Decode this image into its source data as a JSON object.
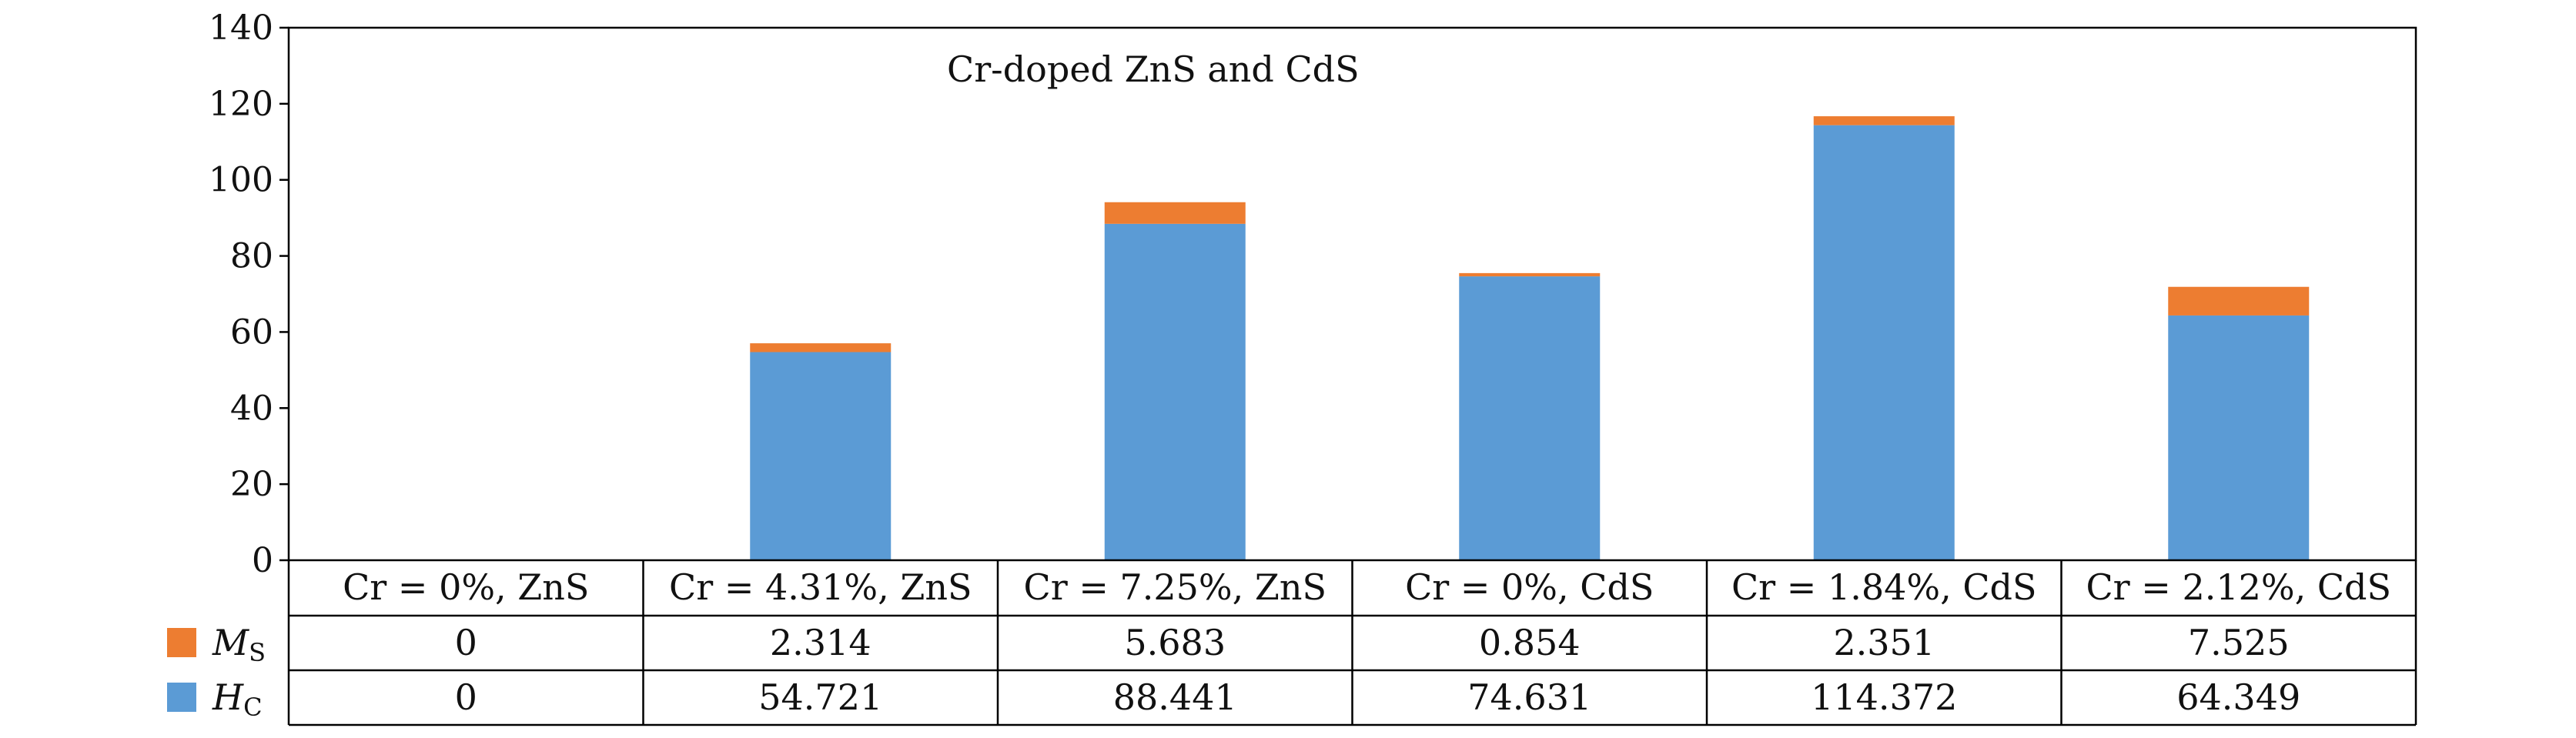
{
  "chart_data": {
    "type": "bar",
    "stacked": true,
    "title": "Cr-doped ZnS and CdS",
    "categories": [
      "Cr = 0%, ZnS",
      "Cr = 4.31%, ZnS",
      "Cr = 7.25%, ZnS",
      "Cr = 0%, CdS",
      "Cr = 1.84%, CdS",
      "Cr = 2.12%, CdS"
    ],
    "ylim": [
      0,
      140
    ],
    "yticks": [
      0,
      20,
      40,
      60,
      80,
      100,
      120,
      140
    ],
    "grid": false,
    "legend_placement": "left of data table",
    "series": [
      {
        "name": "H",
        "subscript": "C",
        "color": "#5b9bd5",
        "values": [
          0,
          54.721,
          88.441,
          74.631,
          114.372,
          64.349
        ],
        "labels": [
          "0",
          "54.721",
          "88.441",
          "74.631",
          "114.372",
          "64.349"
        ]
      },
      {
        "name": "M",
        "subscript": "S",
        "color": "#ed7d31",
        "values": [
          0,
          2.314,
          5.683,
          0.854,
          2.351,
          7.525
        ],
        "labels": [
          "0",
          "2.314",
          "5.683",
          "0.854",
          "2.351",
          "7.525"
        ]
      }
    ],
    "table_row_order": [
      1,
      0
    ]
  }
}
